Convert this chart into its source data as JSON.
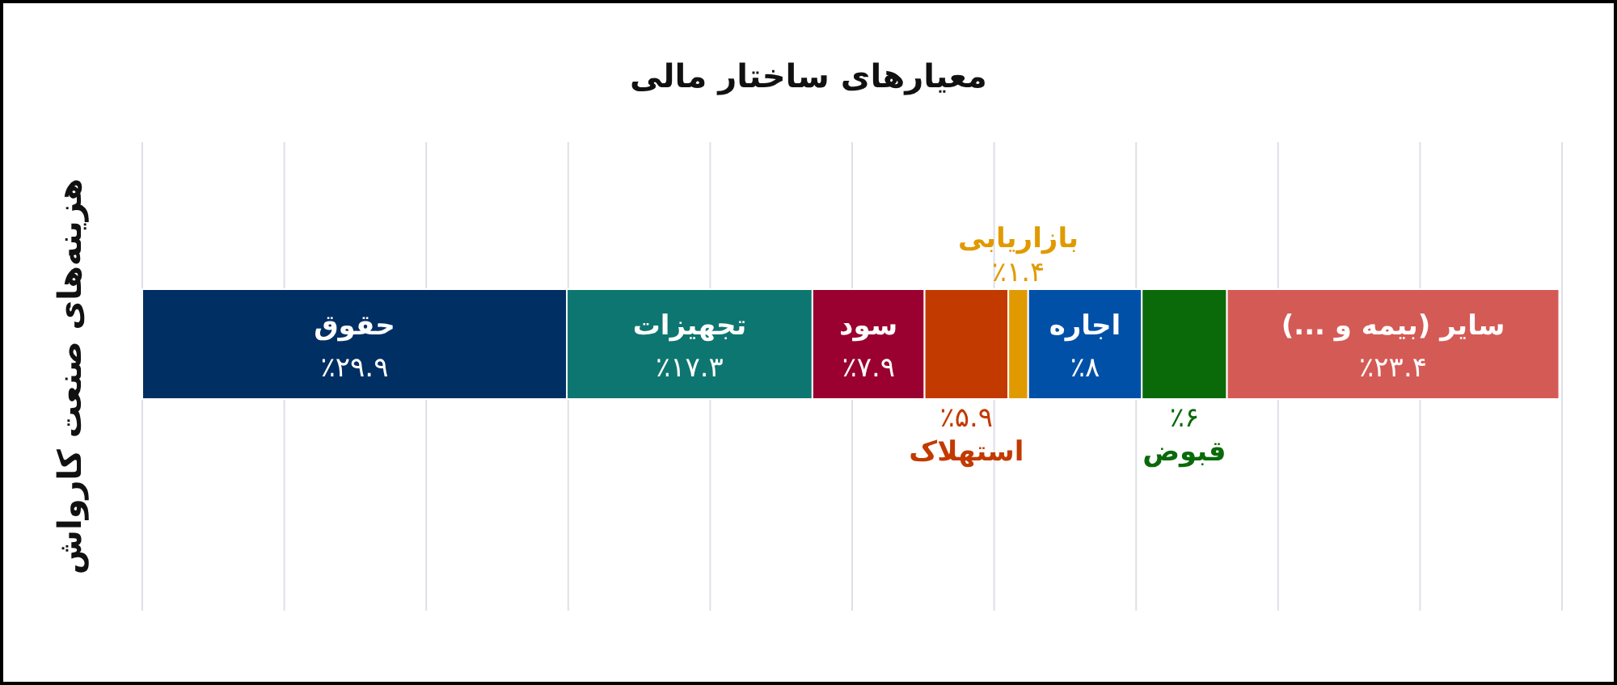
{
  "chart_data": {
    "type": "bar",
    "orientation": "horizontal",
    "stacked": true,
    "title": "معیارهای ساختار مالی",
    "ylabel": "هزینه‌های صنعت کارواش",
    "categories": [
      null
    ],
    "xlim": [
      0,
      100
    ],
    "xticks": [
      {
        "value": 0,
        "label": null
      },
      {
        "value": 10,
        "label": null
      },
      {
        "value": 20,
        "label": null
      },
      {
        "value": 30,
        "label": null
      },
      {
        "value": 40,
        "label": null
      },
      {
        "value": 50,
        "label": null
      },
      {
        "value": 60,
        "label": null
      },
      {
        "value": 70,
        "label": null
      },
      {
        "value": 80,
        "label": null
      },
      {
        "value": 90,
        "label": null
      },
      {
        "value": 100,
        "label": null
      }
    ],
    "grid": "x",
    "series": [
      {
        "name": "حقوق",
        "color": "#002f63",
        "values": [
          29.9
        ],
        "value_labels": [
          "٪۲۹.۹"
        ]
      },
      {
        "name": "تجهیزات",
        "color": "#0e7670",
        "values": [
          17.3
        ],
        "value_labels": [
          "٪۱۷.۳"
        ]
      },
      {
        "name": "سود",
        "color": "#9a0030",
        "values": [
          7.9
        ],
        "value_labels": [
          "٪۷.۹"
        ]
      },
      {
        "name": "استهلاک",
        "color": "#c23a00",
        "values": [
          5.9
        ],
        "value_labels": [
          "٪۵.۹"
        ]
      },
      {
        "name": "بازاریابی",
        "color": "#e09a00",
        "values": [
          1.4
        ],
        "value_labels": [
          "٪۱.۴"
        ]
      },
      {
        "name": "اجاره",
        "color": "#0050a8",
        "values": [
          8
        ],
        "value_labels": [
          "٪۸"
        ]
      },
      {
        "name": "قبوض",
        "color": "#0a6a0a",
        "values": [
          6
        ],
        "value_labels": [
          "٪۶"
        ]
      },
      {
        "name": "سایر (بیمه و ...)",
        "color": "#d45a55",
        "values": [
          23.4
        ],
        "value_labels": [
          "٪۲۳.۴"
        ]
      }
    ]
  }
}
